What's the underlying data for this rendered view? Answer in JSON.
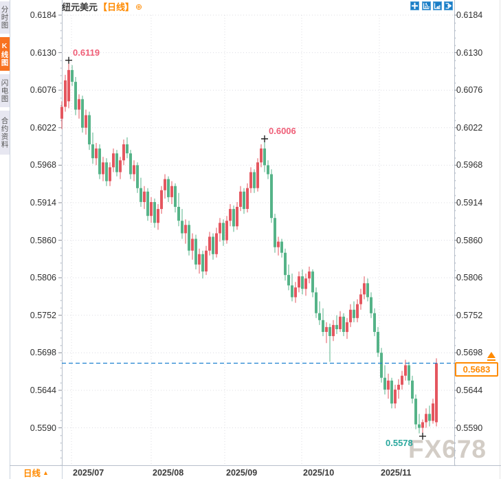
{
  "sidebar": {
    "tabs": [
      {
        "label": "分时图",
        "active": false
      },
      {
        "label": "K线图",
        "active": true
      },
      {
        "label": "闪电图",
        "active": false
      },
      {
        "label": "合约资料",
        "active": false
      }
    ]
  },
  "header": {
    "symbol": "纽元美元",
    "period_tag": "【日线】",
    "add_icon": "⊕"
  },
  "toolbar": {
    "icons": [
      "crosshair-move-icon",
      "fit-chart-icon",
      "play-chart-icon",
      "exit-chart-icon"
    ]
  },
  "footer": {
    "period_label": "日线",
    "dropdown_arrow": "▲"
  },
  "watermark": "FX678",
  "colors": {
    "accent_orange": "#ff8a00",
    "active_tab": "#f8721f",
    "toolbar_blue": "#1b7ec6",
    "price_line_blue": "#1b7fd0",
    "up_candle": "#e4565f",
    "down_candle": "#55b388",
    "annotation_pink": "#ef5e77",
    "annotation_teal": "#2ba89e"
  },
  "chart_data": {
    "type": "candlestick",
    "title": "纽元美元 日线 (NZD/USD daily)",
    "current_price": "0.5683",
    "y_axis": {
      "ticks": [
        "0.6184",
        "0.6130",
        "0.6076",
        "0.6022",
        "0.5968",
        "0.5914",
        "0.5860",
        "0.5806",
        "0.5752",
        "0.5698",
        "0.5644",
        "0.5590"
      ],
      "max": 0.6184,
      "min": 0.559,
      "step": 0.0054
    },
    "x_axis": {
      "labels": [
        "2025/07",
        "2025/08",
        "2025/09",
        "2025/10",
        "2025/11"
      ]
    },
    "annotations": [
      {
        "text": "0.6119",
        "candle_index": 2,
        "price": 0.6119,
        "anchor": "high",
        "color": "#ef5e77"
      },
      {
        "text": "0.6006",
        "candle_index": 59,
        "price": 0.6006,
        "anchor": "high",
        "color": "#ef5e77"
      },
      {
        "text": "0.5578",
        "candle_index": 105,
        "price": 0.5578,
        "anchor": "low",
        "color": "#2ba89e"
      }
    ],
    "up_color": "#e4565f",
    "down_color": "#55b388",
    "candles": [
      [
        0.6035,
        0.606,
        0.602,
        0.6052
      ],
      [
        0.6052,
        0.6098,
        0.6045,
        0.609
      ],
      [
        0.606,
        0.6119,
        0.605,
        0.6105
      ],
      [
        0.6105,
        0.6112,
        0.6082,
        0.6088
      ],
      [
        0.6088,
        0.6095,
        0.604,
        0.6048
      ],
      [
        0.6048,
        0.607,
        0.6035,
        0.6063
      ],
      [
        0.6063,
        0.6068,
        0.6015,
        0.6022
      ],
      [
        0.6022,
        0.6048,
        0.6012,
        0.604
      ],
      [
        0.604,
        0.6045,
        0.599,
        0.5998
      ],
      [
        0.5998,
        0.6015,
        0.597,
        0.5978
      ],
      [
        0.5978,
        0.6,
        0.5968,
        0.5992
      ],
      [
        0.5992,
        0.5998,
        0.5948,
        0.5955
      ],
      [
        0.5955,
        0.598,
        0.5945,
        0.5972
      ],
      [
        0.5972,
        0.5978,
        0.5938,
        0.5945
      ],
      [
        0.5945,
        0.5972,
        0.5938,
        0.5965
      ],
      [
        0.5965,
        0.5992,
        0.5958,
        0.5985
      ],
      [
        0.5985,
        0.599,
        0.5952,
        0.5958
      ],
      [
        0.5958,
        0.598,
        0.5948,
        0.5975
      ],
      [
        0.5975,
        0.6005,
        0.5968,
        0.5998
      ],
      [
        0.5998,
        0.6008,
        0.5978,
        0.5985
      ],
      [
        0.5985,
        0.599,
        0.5948,
        0.5955
      ],
      [
        0.5955,
        0.5975,
        0.5945,
        0.5968
      ],
      [
        0.5968,
        0.5972,
        0.5928,
        0.5935
      ],
      [
        0.5935,
        0.595,
        0.5908,
        0.5915
      ],
      [
        0.5915,
        0.5938,
        0.5905,
        0.593
      ],
      [
        0.593,
        0.5935,
        0.5888,
        0.5895
      ],
      [
        0.5895,
        0.5922,
        0.5885,
        0.5915
      ],
      [
        0.5915,
        0.592,
        0.5878,
        0.5885
      ],
      [
        0.5885,
        0.5912,
        0.5875,
        0.5905
      ],
      [
        0.5905,
        0.5938,
        0.5898,
        0.5932
      ],
      [
        0.5932,
        0.5955,
        0.592,
        0.5948
      ],
      [
        0.5948,
        0.5952,
        0.5915,
        0.5922
      ],
      [
        0.5922,
        0.5945,
        0.5912,
        0.5938
      ],
      [
        0.5938,
        0.5942,
        0.59,
        0.5908
      ],
      [
        0.5908,
        0.5928,
        0.588,
        0.5888
      ],
      [
        0.5888,
        0.5905,
        0.5862,
        0.587
      ],
      [
        0.587,
        0.589,
        0.5855,
        0.5882
      ],
      [
        0.5882,
        0.5888,
        0.5838,
        0.5845
      ],
      [
        0.5845,
        0.587,
        0.5832,
        0.5862
      ],
      [
        0.5862,
        0.5868,
        0.5818,
        0.5825
      ],
      [
        0.5825,
        0.5848,
        0.5812,
        0.584
      ],
      [
        0.584,
        0.5845,
        0.5805,
        0.5815
      ],
      [
        0.5815,
        0.5852,
        0.581,
        0.5845
      ],
      [
        0.5845,
        0.5872,
        0.5838,
        0.5865
      ],
      [
        0.5865,
        0.587,
        0.5832,
        0.584
      ],
      [
        0.584,
        0.5878,
        0.5835,
        0.587
      ],
      [
        0.587,
        0.5892,
        0.5858,
        0.5885
      ],
      [
        0.5885,
        0.589,
        0.5852,
        0.586
      ],
      [
        0.586,
        0.5895,
        0.5855,
        0.5888
      ],
      [
        0.5888,
        0.5912,
        0.588,
        0.5905
      ],
      [
        0.5905,
        0.591,
        0.5872,
        0.588
      ],
      [
        0.588,
        0.5915,
        0.5875,
        0.5908
      ],
      [
        0.5908,
        0.5938,
        0.5902,
        0.593
      ],
      [
        0.593,
        0.5935,
        0.5898,
        0.5905
      ],
      [
        0.5905,
        0.5942,
        0.59,
        0.5935
      ],
      [
        0.5935,
        0.5965,
        0.5928,
        0.5958
      ],
      [
        0.5958,
        0.5962,
        0.5928,
        0.5935
      ],
      [
        0.5935,
        0.5978,
        0.593,
        0.5972
      ],
      [
        0.5972,
        0.5998,
        0.5965,
        0.5992
      ],
      [
        0.5992,
        0.6006,
        0.5958,
        0.5968
      ],
      [
        0.5968,
        0.5975,
        0.5948,
        0.5955
      ],
      [
        0.5955,
        0.5962,
        0.5885,
        0.5892
      ],
      [
        0.5892,
        0.5898,
        0.5842,
        0.585
      ],
      [
        0.585,
        0.5865,
        0.5838,
        0.5858
      ],
      [
        0.5858,
        0.5862,
        0.5835,
        0.5842
      ],
      [
        0.5842,
        0.5848,
        0.5802,
        0.581
      ],
      [
        0.581,
        0.5825,
        0.5788,
        0.5795
      ],
      [
        0.5795,
        0.5812,
        0.5772,
        0.5778
      ],
      [
        0.5778,
        0.58,
        0.577,
        0.5792
      ],
      [
        0.5792,
        0.5815,
        0.5785,
        0.5808
      ],
      [
        0.5808,
        0.5818,
        0.5782,
        0.579
      ],
      [
        0.579,
        0.5812,
        0.578,
        0.5805
      ],
      [
        0.5805,
        0.5822,
        0.5798,
        0.5815
      ],
      [
        0.5815,
        0.5818,
        0.5778,
        0.5785
      ],
      [
        0.5785,
        0.5792,
        0.5748,
        0.5755
      ],
      [
        0.5755,
        0.5772,
        0.5738,
        0.5745
      ],
      [
        0.5745,
        0.5762,
        0.5722,
        0.5728
      ],
      [
        0.5728,
        0.5742,
        0.5712,
        0.5735
      ],
      [
        0.5735,
        0.574,
        0.5685,
        0.5722
      ],
      [
        0.5722,
        0.5745,
        0.5715,
        0.5738
      ],
      [
        0.5738,
        0.5752,
        0.5725,
        0.5732
      ],
      [
        0.5732,
        0.5758,
        0.5728,
        0.575
      ],
      [
        0.575,
        0.5755,
        0.5722,
        0.5728
      ],
      [
        0.5728,
        0.5748,
        0.5718,
        0.5742
      ],
      [
        0.5742,
        0.5768,
        0.5735,
        0.576
      ],
      [
        0.576,
        0.5772,
        0.5742,
        0.5748
      ],
      [
        0.5748,
        0.5775,
        0.5742,
        0.5768
      ],
      [
        0.5768,
        0.579,
        0.576,
        0.5782
      ],
      [
        0.5782,
        0.5808,
        0.5775,
        0.5798
      ],
      [
        0.5798,
        0.5805,
        0.5772,
        0.5778
      ],
      [
        0.5778,
        0.5785,
        0.5748,
        0.5755
      ],
      [
        0.5755,
        0.5762,
        0.5722,
        0.5728
      ],
      [
        0.5728,
        0.5735,
        0.5692,
        0.5698
      ],
      [
        0.5698,
        0.5705,
        0.5655,
        0.5662
      ],
      [
        0.5662,
        0.568,
        0.5638,
        0.5645
      ],
      [
        0.5645,
        0.5668,
        0.5632,
        0.5658
      ],
      [
        0.5658,
        0.5662,
        0.5618,
        0.5625
      ],
      [
        0.5625,
        0.5652,
        0.5618,
        0.5645
      ],
      [
        0.5645,
        0.566,
        0.5632,
        0.5652
      ],
      [
        0.5652,
        0.5672,
        0.5645,
        0.5665
      ],
      [
        0.5665,
        0.5688,
        0.5658,
        0.568
      ],
      [
        0.568,
        0.5685,
        0.5652,
        0.5658
      ],
      [
        0.5658,
        0.5665,
        0.5625,
        0.5632
      ],
      [
        0.5632,
        0.5638,
        0.5588,
        0.5595
      ],
      [
        0.5595,
        0.561,
        0.5582,
        0.559
      ],
      [
        0.559,
        0.5602,
        0.5578,
        0.5598
      ],
      [
        0.5598,
        0.5618,
        0.559,
        0.561
      ],
      [
        0.561,
        0.5622,
        0.5592,
        0.56
      ],
      [
        0.56,
        0.5632,
        0.5596,
        0.5625
      ],
      [
        0.5598,
        0.569,
        0.5592,
        0.5683
      ]
    ]
  }
}
